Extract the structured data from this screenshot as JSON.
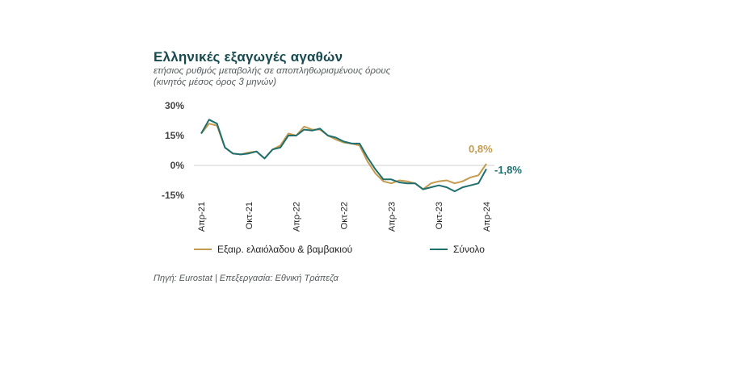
{
  "header": {
    "title": "Ελληνικές εξαγωγές αγαθών",
    "subtitle_line1": "ετήσιος ρυθμός μεταβολής σε αποπληθωρισμένους όρους",
    "subtitle_line2": "(κινητός μέσος όρος 3 μηνών)"
  },
  "source": "Πηγή: Eurostat | Επεξεργασία: Εθνική Τράπεζα",
  "colors": {
    "series_excl": "#c39a4e",
    "series_total": "#1e6f6e",
    "title": "#174a4f",
    "zero_line": "#cfcfcf"
  },
  "chart_data": {
    "type": "line",
    "title": "Ελληνικές εξαγωγές αγαθών",
    "ylim": [
      -15,
      30
    ],
    "y_ticks": [
      30,
      15,
      0,
      -15
    ],
    "y_tick_labels": [
      "30%",
      "15%",
      "0%",
      "-15%"
    ],
    "x_tick_labels": [
      "Απρ-21",
      "Οκτ-21",
      "Απρ-22",
      "Οκτ-22",
      "Απρ-23",
      "Οκτ-23",
      "Απρ-24"
    ],
    "x_tick_index": [
      0,
      6,
      12,
      18,
      24,
      30,
      36
    ],
    "x": [
      "Απρ-21",
      "Μάι-21",
      "Ιουν-21",
      "Ιουλ-21",
      "Αυγ-21",
      "Σεπ-21",
      "Οκτ-21",
      "Νοε-21",
      "Δεκ-21",
      "Ιαν-22",
      "Φεβ-22",
      "Μαρ-22",
      "Απρ-22",
      "Μάι-22",
      "Ιουν-22",
      "Ιουλ-22",
      "Αυγ-22",
      "Σεπ-22",
      "Οκτ-22",
      "Νοε-22",
      "Δεκ-22",
      "Ιαν-23",
      "Φεβ-23",
      "Μαρ-23",
      "Απρ-23",
      "Μάι-23",
      "Ιουν-23",
      "Ιουλ-23",
      "Αυγ-23",
      "Σεπ-23",
      "Οκτ-23",
      "Νοε-23",
      "Δεκ-23",
      "Ιαν-24",
      "Φεβ-24",
      "Μαρ-24",
      "Απρ-24"
    ],
    "series": [
      {
        "name": "Εξαιρ. ελαιόλαδου & βαμβακιού",
        "values": [
          16,
          21,
          20,
          9,
          6,
          5.5,
          6.5,
          7,
          3.5,
          8,
          10,
          16,
          15,
          19.5,
          18,
          18,
          15,
          13,
          11.5,
          11,
          10,
          2,
          -4,
          -8,
          -9,
          -7.5,
          -8,
          -9,
          -12,
          -9,
          -8,
          -7.5,
          -9,
          -8,
          -6,
          -5,
          0.8
        ]
      },
      {
        "name": "Σύνολο",
        "values": [
          16,
          23,
          21,
          9,
          6,
          5.5,
          6,
          7,
          3.5,
          8,
          9,
          15,
          15,
          18,
          17.5,
          18.5,
          15,
          14,
          12,
          11,
          11,
          4,
          -2,
          -7,
          -7,
          -8.5,
          -9,
          -9,
          -12,
          -11,
          -10,
          -11,
          -13,
          -11,
          -10,
          -9,
          -1.8
        ]
      }
    ],
    "end_labels": [
      "0,8%",
      "-1,8%"
    ],
    "legend_position": "bottom",
    "grid": false
  }
}
